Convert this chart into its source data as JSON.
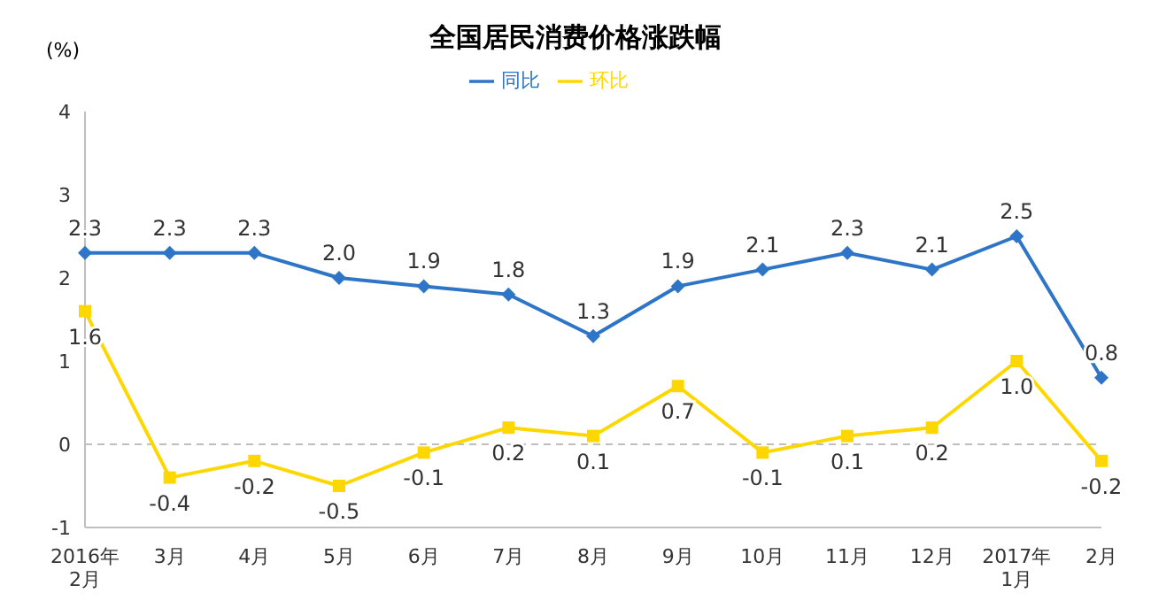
{
  "chart_data": {
    "type": "line",
    "title": "全国居民消费价格涨跌幅",
    "ylabel": "(%)",
    "categories": [
      "2016年\n2月",
      "3月",
      "4月",
      "5月",
      "6月",
      "7月",
      "8月",
      "9月",
      "10月",
      "11月",
      "12月",
      "2017年\n1月",
      "2月"
    ],
    "series": [
      {
        "name": "同比",
        "color": "#2e75c8",
        "marker": "diamond",
        "values": [
          2.3,
          2.3,
          2.3,
          2.0,
          1.9,
          1.8,
          1.3,
          1.9,
          2.1,
          2.3,
          2.1,
          2.5,
          0.8
        ],
        "value_labels": [
          "2.3",
          "2.3",
          "2.3",
          "2.0",
          "1.9",
          "1.8",
          "1.3",
          "1.9",
          "2.1",
          "2.3",
          "2.1",
          "2.5",
          "0.8"
        ]
      },
      {
        "name": "环比",
        "color": "#ffd700",
        "marker": "square",
        "values": [
          1.6,
          -0.4,
          -0.2,
          -0.5,
          -0.1,
          0.2,
          0.1,
          0.7,
          -0.1,
          0.1,
          0.2,
          1.0,
          -0.2
        ],
        "value_labels": [
          "1.6",
          "-0.4",
          "-0.2",
          "-0.5",
          "-0.1",
          "0.2",
          "0.1",
          "0.7",
          "-0.1",
          "0.1",
          "0.2",
          "1.0",
          "-0.2"
        ]
      }
    ],
    "ylim": [
      -1,
      4
    ],
    "yticks": [
      -1,
      0,
      1,
      2,
      3,
      4
    ],
    "grid": false,
    "legend": "top",
    "ref_lines": [
      {
        "axis": "y",
        "value": 0,
        "color": "#bfbfbf",
        "line_style": "dashed"
      }
    ]
  }
}
